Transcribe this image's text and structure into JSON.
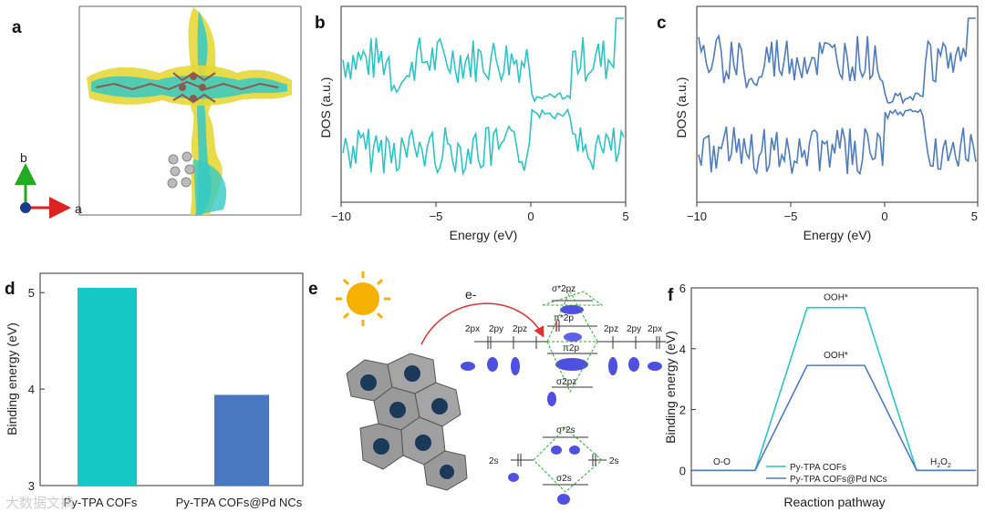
{
  "panels": {
    "a": "a",
    "b": "b",
    "c": "c",
    "d": "d",
    "e": "e",
    "f": "f"
  },
  "panel_a": {
    "axis_b": "b",
    "axis_a": "a"
  },
  "colors": {
    "cyan": "#2ec4c4",
    "blue": "#4f7bbf",
    "bar_cyan": "#16c8c5",
    "bar_blue": "#4a78c0"
  },
  "panel_e": {
    "electron": "e-",
    "sigma_star_2pz": "σ*2pz",
    "pi_star_2p": "π*2p",
    "pi_2p": "π2p",
    "sigma_2pz": "σ2pz",
    "sigma_star_2s": "σ*2s",
    "sigma_2s": "σ2s",
    "left_2p_labels": [
      "2px",
      "2py",
      "2pz"
    ],
    "right_2p_labels": [
      "2pz",
      "2py",
      "2px"
    ],
    "left_2s": "2s",
    "right_2s": "2s"
  },
  "watermark": "大数据文摘",
  "chart_data": [
    {
      "id": "b",
      "type": "line",
      "title": "",
      "xlabel": "Energy (eV)",
      "ylabel": "DOS (a.u.)",
      "xlim": [
        -10,
        5
      ],
      "xticks": [
        "−10",
        "−5",
        "0",
        "5"
      ],
      "series": [
        {
          "name": "Py-TPA COFs",
          "color": "#2ec4c4",
          "description": "spin-up / spin-down DOS mirrored about zero"
        }
      ]
    },
    {
      "id": "c",
      "type": "line",
      "title": "",
      "xlabel": "Energy (eV)",
      "ylabel": "DOS (a.u.)",
      "xlim": [
        -10,
        5
      ],
      "xticks": [
        "−10",
        "−5",
        "0",
        "5"
      ],
      "series": [
        {
          "name": "Py-TPA COFs@Pd NCs",
          "color": "#4f7bbf",
          "description": "spin-up / spin-down DOS mirrored about zero"
        }
      ]
    },
    {
      "id": "d",
      "type": "bar",
      "categories": [
        "Py-TPA COFs",
        "Py-TPA COFs@Pd NCs"
      ],
      "values": [
        5.05,
        3.94
      ],
      "ylabel": "Binding energy (eV)",
      "ylim": [
        3,
        5.2
      ],
      "yticks": [
        "3",
        "4",
        "5"
      ]
    },
    {
      "id": "f",
      "type": "line",
      "xlabel": "Reaction pathway",
      "ylabel": "Binding energy (eV)",
      "ylim": [
        -0.5,
        6
      ],
      "yticks": [
        "0",
        "2",
        "4",
        "6"
      ],
      "states": [
        "O-O",
        "OOH*",
        "H2O2"
      ],
      "series": [
        {
          "name": "Py-TPA COFs",
          "values": [
            0,
            5.35,
            0
          ],
          "label": "OOH*"
        },
        {
          "name": "Py-TPA COFs@Pd NCs",
          "values": [
            0,
            3.45,
            0
          ],
          "label": "OOH*"
        }
      ],
      "start_label": "O-O",
      "end_label": "H",
      "end_label_sub": "2",
      "end_label_tail": "O",
      "end_label_sub2": "2"
    }
  ]
}
